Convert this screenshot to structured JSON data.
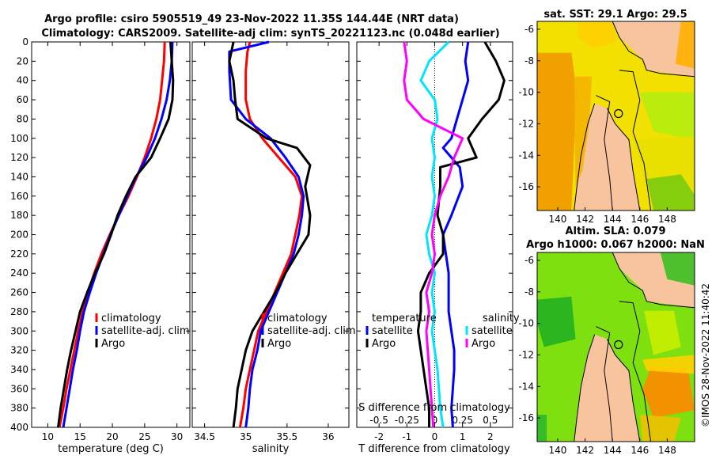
{
  "title_line1": "Argo profile: csiro 5905519_49 23-Nov-2022 11.35S 144.44E (NRT data)",
  "title_line2": "Climatology: CARS2009. Satellite-adj clim: synTS_20221123.nc (0.048d earlier)",
  "timestamp": "©IMOS 28-Nov-2022 11:40:42",
  "colors": {
    "climatology": "#ff0000",
    "satellite": "#0000ff",
    "argo": "#000000",
    "sal_satellite": "#00e5ff",
    "sal_argo": "#ff00ff",
    "land": "#f8c49e",
    "coast": "#000000"
  },
  "legend_temp": [
    "climatology",
    "satellite-adj. clim",
    "Argo"
  ],
  "legend_sal": [
    "climatology",
    "satellite-adj. clim",
    "Argo"
  ],
  "legend_diff": {
    "temp_header": "temperature",
    "temp_items": [
      "satellite",
      "Argo"
    ],
    "sal_header": "salinity",
    "sal_items": [
      "satellite",
      "Argo"
    ]
  },
  "chart_data": [
    {
      "id": "temperature",
      "type": "line",
      "orientation": "vertical-depth",
      "xlabel": "temperature (deg C)",
      "ylabel": "",
      "xlim": [
        7.5,
        32
      ],
      "ylim": [
        0,
        400
      ],
      "xticks": [
        10,
        15,
        20,
        25,
        30
      ],
      "yticks": [
        0,
        20,
        40,
        60,
        80,
        100,
        120,
        140,
        160,
        180,
        200,
        220,
        240,
        260,
        280,
        300,
        320,
        340,
        360,
        380,
        400
      ],
      "series": [
        {
          "name": "climatology",
          "color": "climatology",
          "x": [
            28.1,
            28.0,
            27.7,
            27.4,
            26.8,
            26.0,
            25.0,
            23.8,
            22.5,
            21.0,
            19.6,
            18.3,
            17.2,
            16.2,
            15.4,
            14.7,
            14.1,
            13.5,
            12.9,
            12.4,
            11.8
          ],
          "y": [
            0,
            20,
            40,
            60,
            80,
            100,
            120,
            140,
            160,
            180,
            200,
            220,
            240,
            260,
            280,
            300,
            320,
            340,
            360,
            380,
            400
          ]
        },
        {
          "name": "satellite-adj. clim",
          "color": "satellite",
          "x": [
            29.3,
            29.2,
            28.9,
            28.4,
            27.6,
            26.6,
            25.3,
            23.7,
            22.3,
            21.0,
            19.7,
            18.6,
            17.5,
            16.5,
            15.6,
            15.0,
            14.5,
            13.9,
            13.4,
            12.9,
            12.4
          ],
          "y": [
            0,
            20,
            40,
            60,
            80,
            100,
            120,
            140,
            160,
            180,
            200,
            220,
            240,
            260,
            280,
            300,
            320,
            340,
            360,
            380,
            400
          ]
        },
        {
          "name": "Argo",
          "color": "argo",
          "x": [
            29.0,
            29.2,
            29.4,
            29.3,
            28.7,
            27.4,
            26.0,
            23.6,
            22.1,
            20.8,
            19.8,
            18.7,
            17.3,
            16.1,
            15.0,
            14.3,
            13.6,
            13.0,
            12.5,
            12.0,
            11.6
          ],
          "y": [
            0,
            20,
            40,
            60,
            80,
            100,
            120,
            140,
            160,
            180,
            200,
            220,
            240,
            260,
            280,
            300,
            320,
            340,
            360,
            380,
            400
          ]
        }
      ]
    },
    {
      "id": "salinity",
      "type": "line",
      "orientation": "vertical-depth",
      "xlabel": "salinity",
      "ylabel": "",
      "xlim": [
        34.35,
        36.25
      ],
      "ylim": [
        0,
        400
      ],
      "xticks": [
        34.5,
        35,
        35.5,
        36
      ],
      "yticks": [],
      "xticklabels": [
        "34.5",
        "35",
        "35.5",
        "36"
      ],
      "series": [
        {
          "name": "climatology",
          "color": "climatology",
          "x": [
            35.05,
            35.02,
            35.0,
            35.0,
            35.05,
            35.2,
            35.4,
            35.6,
            35.68,
            35.65,
            35.6,
            35.55,
            35.45,
            35.35,
            35.25,
            35.15,
            35.1,
            35.05,
            35.0,
            34.97,
            34.93
          ],
          "y": [
            0,
            10,
            30,
            60,
            80,
            100,
            120,
            140,
            160,
            180,
            200,
            220,
            240,
            260,
            280,
            300,
            320,
            340,
            360,
            380,
            400
          ]
        },
        {
          "name": "satellite-adj. clim",
          "color": "satellite",
          "x": [
            35.28,
            34.8,
            34.8,
            34.82,
            35.0,
            35.3,
            35.48,
            35.64,
            35.7,
            35.68,
            35.64,
            35.58,
            35.48,
            35.38,
            35.28,
            35.18,
            35.14,
            35.08,
            35.05,
            35.03,
            35.0
          ],
          "y": [
            0,
            10,
            30,
            60,
            80,
            100,
            120,
            140,
            160,
            180,
            200,
            220,
            240,
            260,
            280,
            300,
            320,
            340,
            360,
            380,
            400
          ]
        },
        {
          "name": "Argo",
          "color": "argo",
          "x": [
            34.85,
            34.8,
            34.85,
            34.87,
            34.9,
            35.25,
            35.62,
            35.78,
            35.72,
            35.78,
            35.76,
            35.62,
            35.48,
            35.36,
            35.22,
            35.08,
            35.0,
            34.95,
            34.9,
            34.88,
            34.85
          ],
          "y": [
            0,
            20,
            40,
            60,
            80,
            100,
            110,
            128,
            150,
            180,
            200,
            220,
            240,
            260,
            280,
            300,
            320,
            340,
            360,
            380,
            400
          ]
        }
      ]
    },
    {
      "id": "difference",
      "type": "line",
      "orientation": "vertical-depth",
      "xlabel": "T difference from climatology",
      "ylabel": "",
      "xlabel_top": "S difference from climatology",
      "xlim": [
        -2.8,
        2.8
      ],
      "ylim": [
        0,
        400
      ],
      "xticks": [
        -2,
        -1,
        0,
        1,
        2
      ],
      "yticks": [],
      "top_ticks": [
        -0.5,
        -0.25,
        0,
        0.25,
        0.5
      ],
      "top_ticklabels": [
        "-0.5",
        "-0.25",
        "0",
        "0.25",
        "0.5"
      ],
      "series": [
        {
          "name": "temperature satellite",
          "color": "satellite",
          "x": [
            1.2,
            1.1,
            1.2,
            1.0,
            0.8,
            0.6,
            0.3,
            0.9,
            1.0,
            0.6,
            0.3,
            0.4,
            0.5,
            0.5,
            0.5,
            0.6,
            0.7,
            0.7,
            0.65,
            0.6,
            0.65
          ],
          "y": [
            0,
            20,
            40,
            60,
            80,
            100,
            110,
            130,
            150,
            180,
            200,
            220,
            240,
            260,
            280,
            300,
            320,
            340,
            360,
            380,
            400
          ]
        },
        {
          "name": "temperature Argo",
          "color": "argo",
          "x": [
            1.8,
            2.2,
            2.5,
            2.3,
            1.7,
            1.2,
            1.5,
            0.2,
            0.2,
            0.1,
            0.3,
            0.3,
            -0.2,
            -0.5,
            -0.5,
            -0.6,
            -0.5,
            -0.4,
            -0.3,
            -0.2,
            -0.2
          ],
          "y": [
            0,
            20,
            40,
            60,
            80,
            100,
            120,
            130,
            150,
            180,
            200,
            220,
            240,
            260,
            280,
            300,
            320,
            340,
            360,
            380,
            400
          ]
        },
        {
          "name": "salinity satellite",
          "color": "sal_satellite",
          "x": [
            0.5,
            -0.2,
            -0.5,
            0,
            0.1,
            -0.1,
            0.0,
            -0.1,
            0.0,
            -0.1,
            -0.3,
            -0.2,
            0.0,
            -0.1,
            0.0,
            -0.1,
            0.0,
            0.1,
            0.15,
            0.2,
            0.3
          ],
          "y": [
            0,
            20,
            40,
            60,
            80,
            100,
            120,
            140,
            160,
            180,
            200,
            220,
            240,
            260,
            280,
            300,
            320,
            340,
            360,
            380,
            400
          ]
        },
        {
          "name": "salinity Argo",
          "color": "sal_argo",
          "x": [
            -1.1,
            -1.0,
            -1.1,
            -1.0,
            -0.4,
            1.0,
            0.7,
            0.5,
            0.2,
            0.0,
            -0.1,
            0.0,
            -0.1,
            -0.3,
            -0.2,
            -0.3,
            -0.25,
            -0.2,
            -0.15,
            -0.1,
            -0.05
          ],
          "y": [
            0,
            20,
            40,
            60,
            80,
            100,
            120,
            140,
            160,
            180,
            200,
            220,
            240,
            260,
            280,
            300,
            320,
            340,
            360,
            380,
            400
          ]
        }
      ]
    },
    {
      "id": "sst_map",
      "type": "heatmap",
      "title": "sat. SST: 29.1 Argo: 29.5",
      "xlim": [
        138.5,
        150
      ],
      "ylim": [
        -17.5,
        -5.5
      ],
      "xticks": [
        140,
        142,
        144,
        146,
        148
      ],
      "yticks": [
        -6,
        -8,
        -10,
        -12,
        -14,
        -16
      ],
      "xticklabels": [
        "140",
        "142",
        "144",
        "146",
        "148"
      ],
      "yticklabels": [
        "-6",
        "-8",
        "-10",
        "-12",
        "-14",
        "-16"
      ],
      "marker": {
        "lon": 144.44,
        "lat": -11.35
      }
    },
    {
      "id": "sla_map",
      "type": "heatmap",
      "title_line1": "Altim. SLA: 0.079",
      "title_line2": "Argo h1000: 0.067 h2000: NaN",
      "xlim": [
        138.5,
        150
      ],
      "ylim": [
        -17.5,
        -5.5
      ],
      "xticks": [
        140,
        142,
        144,
        146,
        148
      ],
      "yticks": [
        -6,
        -8,
        -10,
        -12,
        -14,
        -16
      ],
      "xticklabels": [
        "140",
        "142",
        "144",
        "146",
        "148"
      ],
      "yticklabels": [
        "-6",
        "-8",
        "-10",
        "-12",
        "-14",
        "-16"
      ],
      "marker": {
        "lon": 144.44,
        "lat": -11.35
      }
    }
  ]
}
